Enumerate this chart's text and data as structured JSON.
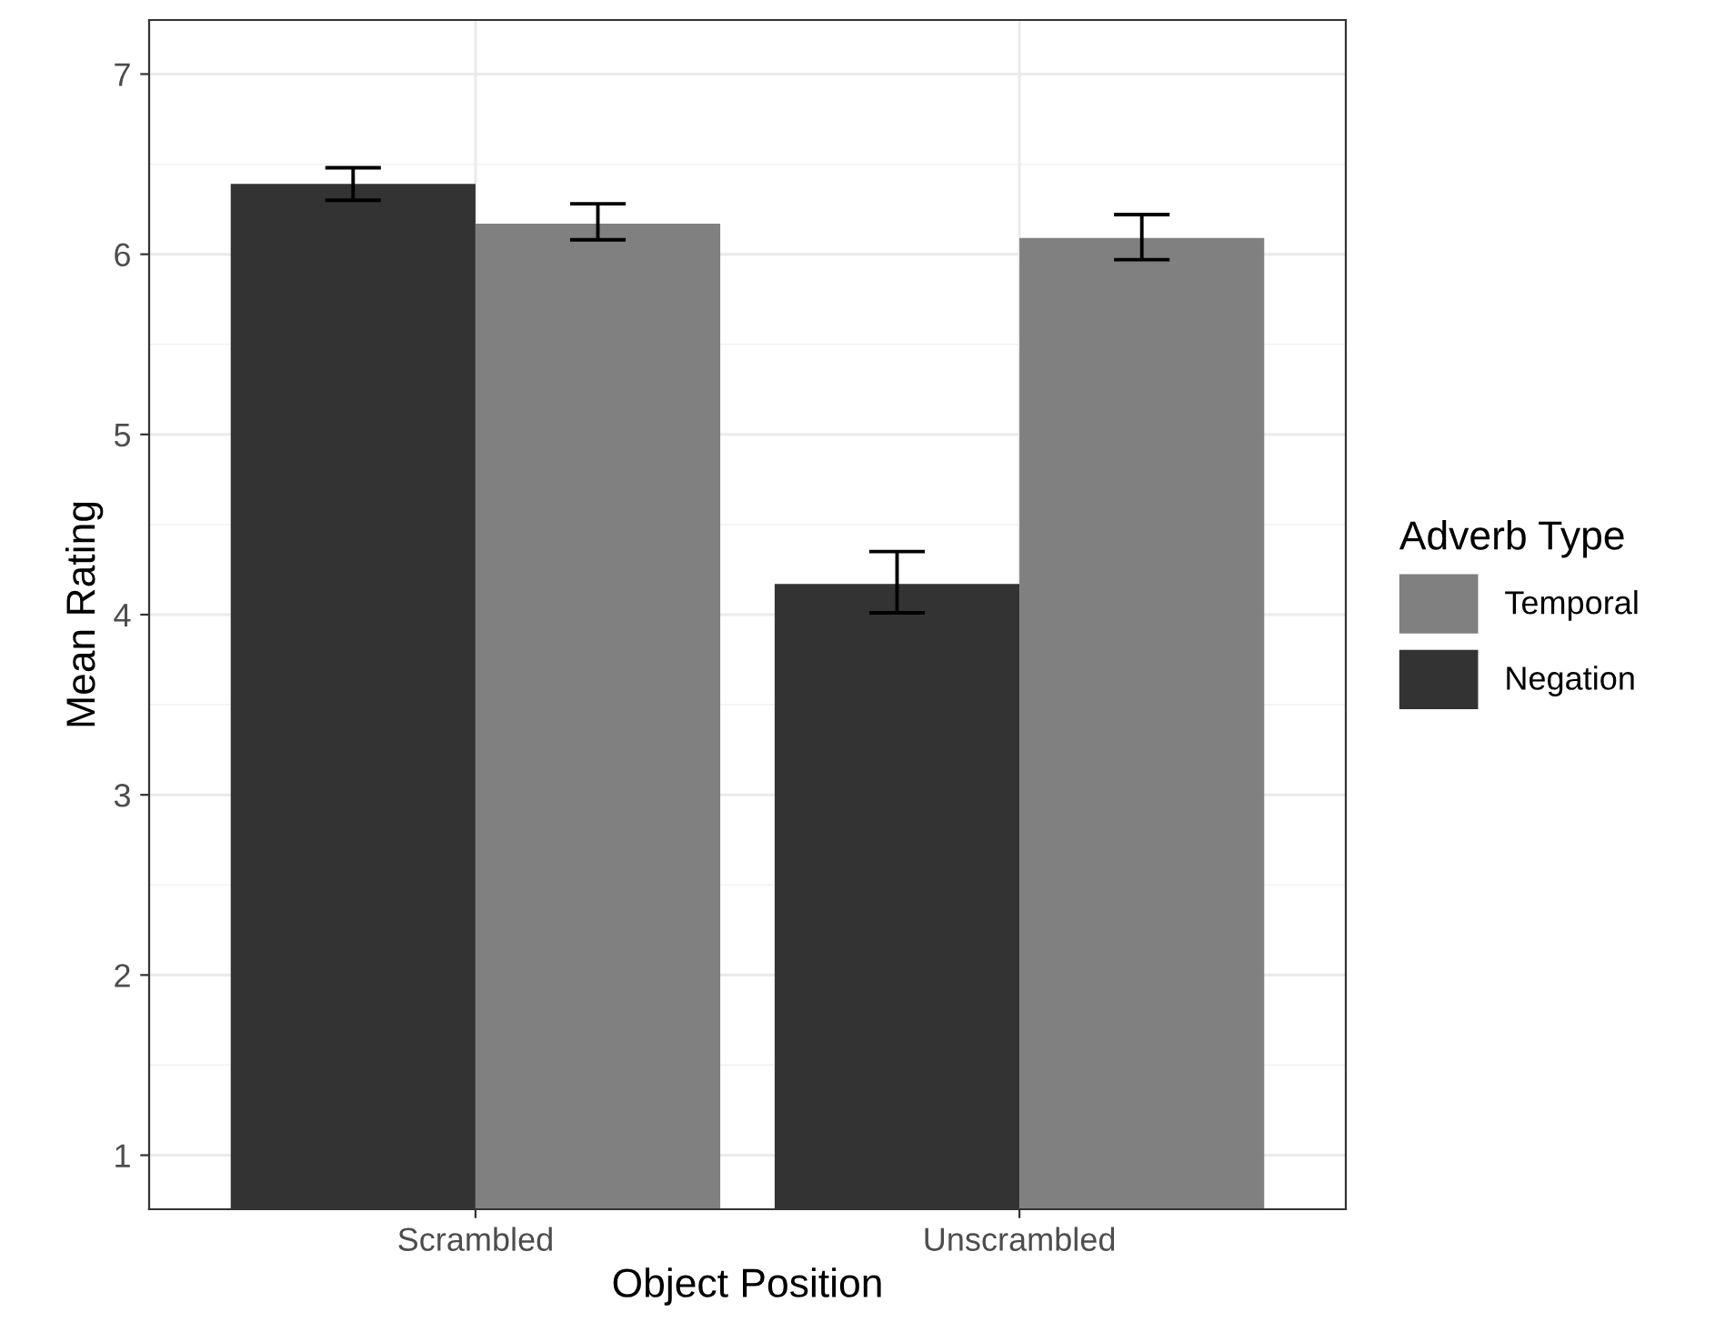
{
  "chart_data": {
    "type": "bar",
    "xlabel": "Object Position",
    "ylabel": "Mean Rating",
    "legend_title": "Adverb Type",
    "categories": [
      "Scrambled",
      "Unscrambled"
    ],
    "series": [
      {
        "name": "Negation",
        "color": "#333333",
        "values": [
          6.39,
          4.17
        ],
        "errors": [
          [
            6.3,
            6.48
          ],
          [
            4.01,
            4.35
          ]
        ]
      },
      {
        "name": "Temporal",
        "color": "#808080",
        "values": [
          6.17,
          6.09
        ],
        "errors": [
          [
            6.08,
            6.28
          ],
          [
            5.97,
            6.22
          ]
        ]
      }
    ],
    "ylim": [
      0.7,
      7.3
    ],
    "yticks": [
      1,
      2,
      3,
      4,
      5,
      6,
      7
    ],
    "grid": true,
    "legend": "right"
  }
}
